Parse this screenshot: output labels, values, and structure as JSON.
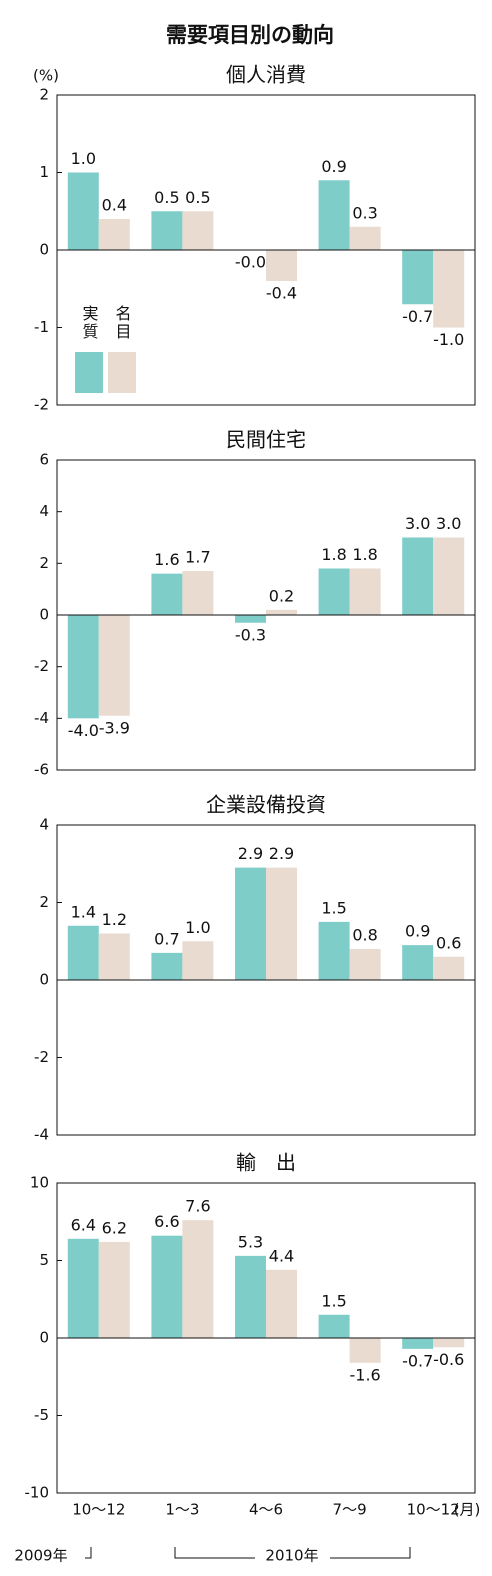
{
  "header": {
    "title": "需要項目別の動向",
    "unit": "(%)"
  },
  "chart_data": [
    {
      "type": "bar",
      "title": "個人消費",
      "ylim": [
        -2,
        2
      ],
      "yticks": [
        -2,
        -1,
        0,
        1,
        2
      ],
      "series": [
        {
          "name": "実質",
          "color": "#7fcdc9",
          "values": [
            1.0,
            0.5,
            -0.0,
            0.9,
            -0.7
          ],
          "value_labels": [
            "1.0",
            "0.5",
            "-0.0",
            "0.9",
            "-0.7"
          ]
        },
        {
          "name": "名目",
          "color": "#e9dbcf",
          "values": [
            0.4,
            0.5,
            -0.4,
            0.3,
            -1.0
          ],
          "value_labels": [
            "0.4",
            "0.5",
            "-0.4",
            "0.3",
            "-1.0"
          ]
        }
      ]
    },
    {
      "type": "bar",
      "title": "民間住宅",
      "ylim": [
        -6,
        6
      ],
      "yticks": [
        -6,
        -4,
        -2,
        0,
        2,
        4,
        6
      ],
      "series": [
        {
          "color": "#7fcdc9",
          "values": [
            -4.0,
            1.6,
            -0.3,
            1.8,
            3.0
          ],
          "value_labels": [
            "-4.0",
            "1.6",
            "-0.3",
            "1.8",
            "3.0"
          ]
        },
        {
          "color": "#e9dbcf",
          "values": [
            -3.9,
            1.7,
            0.2,
            1.8,
            3.0
          ],
          "value_labels": [
            "-3.9",
            "1.7",
            "0.2",
            "1.8",
            "3.0"
          ]
        }
      ]
    },
    {
      "type": "bar",
      "title": "企業設備投資",
      "ylim": [
        -4,
        4
      ],
      "yticks": [
        -4,
        -2,
        0,
        2,
        4
      ],
      "series": [
        {
          "color": "#7fcdc9",
          "values": [
            1.4,
            0.7,
            2.9,
            1.5,
            0.9
          ],
          "value_labels": [
            "1.4",
            "0.7",
            "2.9",
            "1.5",
            "0.9"
          ]
        },
        {
          "color": "#e9dbcf",
          "values": [
            1.2,
            1.0,
            2.9,
            0.8,
            0.6
          ],
          "value_labels": [
            "1.2",
            "1.0",
            "2.9",
            "0.8",
            "0.6"
          ]
        }
      ]
    },
    {
      "type": "bar",
      "title": "輸　出",
      "ylim": [
        -10,
        10
      ],
      "yticks": [
        -10,
        -5,
        0,
        5,
        10
      ],
      "categories": [
        "10～12",
        "1～3",
        "4～6",
        "7～9",
        "10～12"
      ],
      "x_unit": "(月)",
      "year_labels": [
        "2009年",
        "2010年"
      ],
      "series": [
        {
          "color": "#7fcdc9",
          "values": [
            6.4,
            6.6,
            5.3,
            1.5,
            -0.7
          ],
          "value_labels": [
            "6.4",
            "6.6",
            "5.3",
            "1.5",
            "-0.7"
          ]
        },
        {
          "color": "#e9dbcf",
          "values": [
            6.2,
            7.6,
            4.4,
            -1.6,
            -0.6
          ],
          "value_labels": [
            "6.2",
            "7.6",
            "4.4",
            "-1.6",
            "-0.6"
          ]
        }
      ]
    }
  ]
}
